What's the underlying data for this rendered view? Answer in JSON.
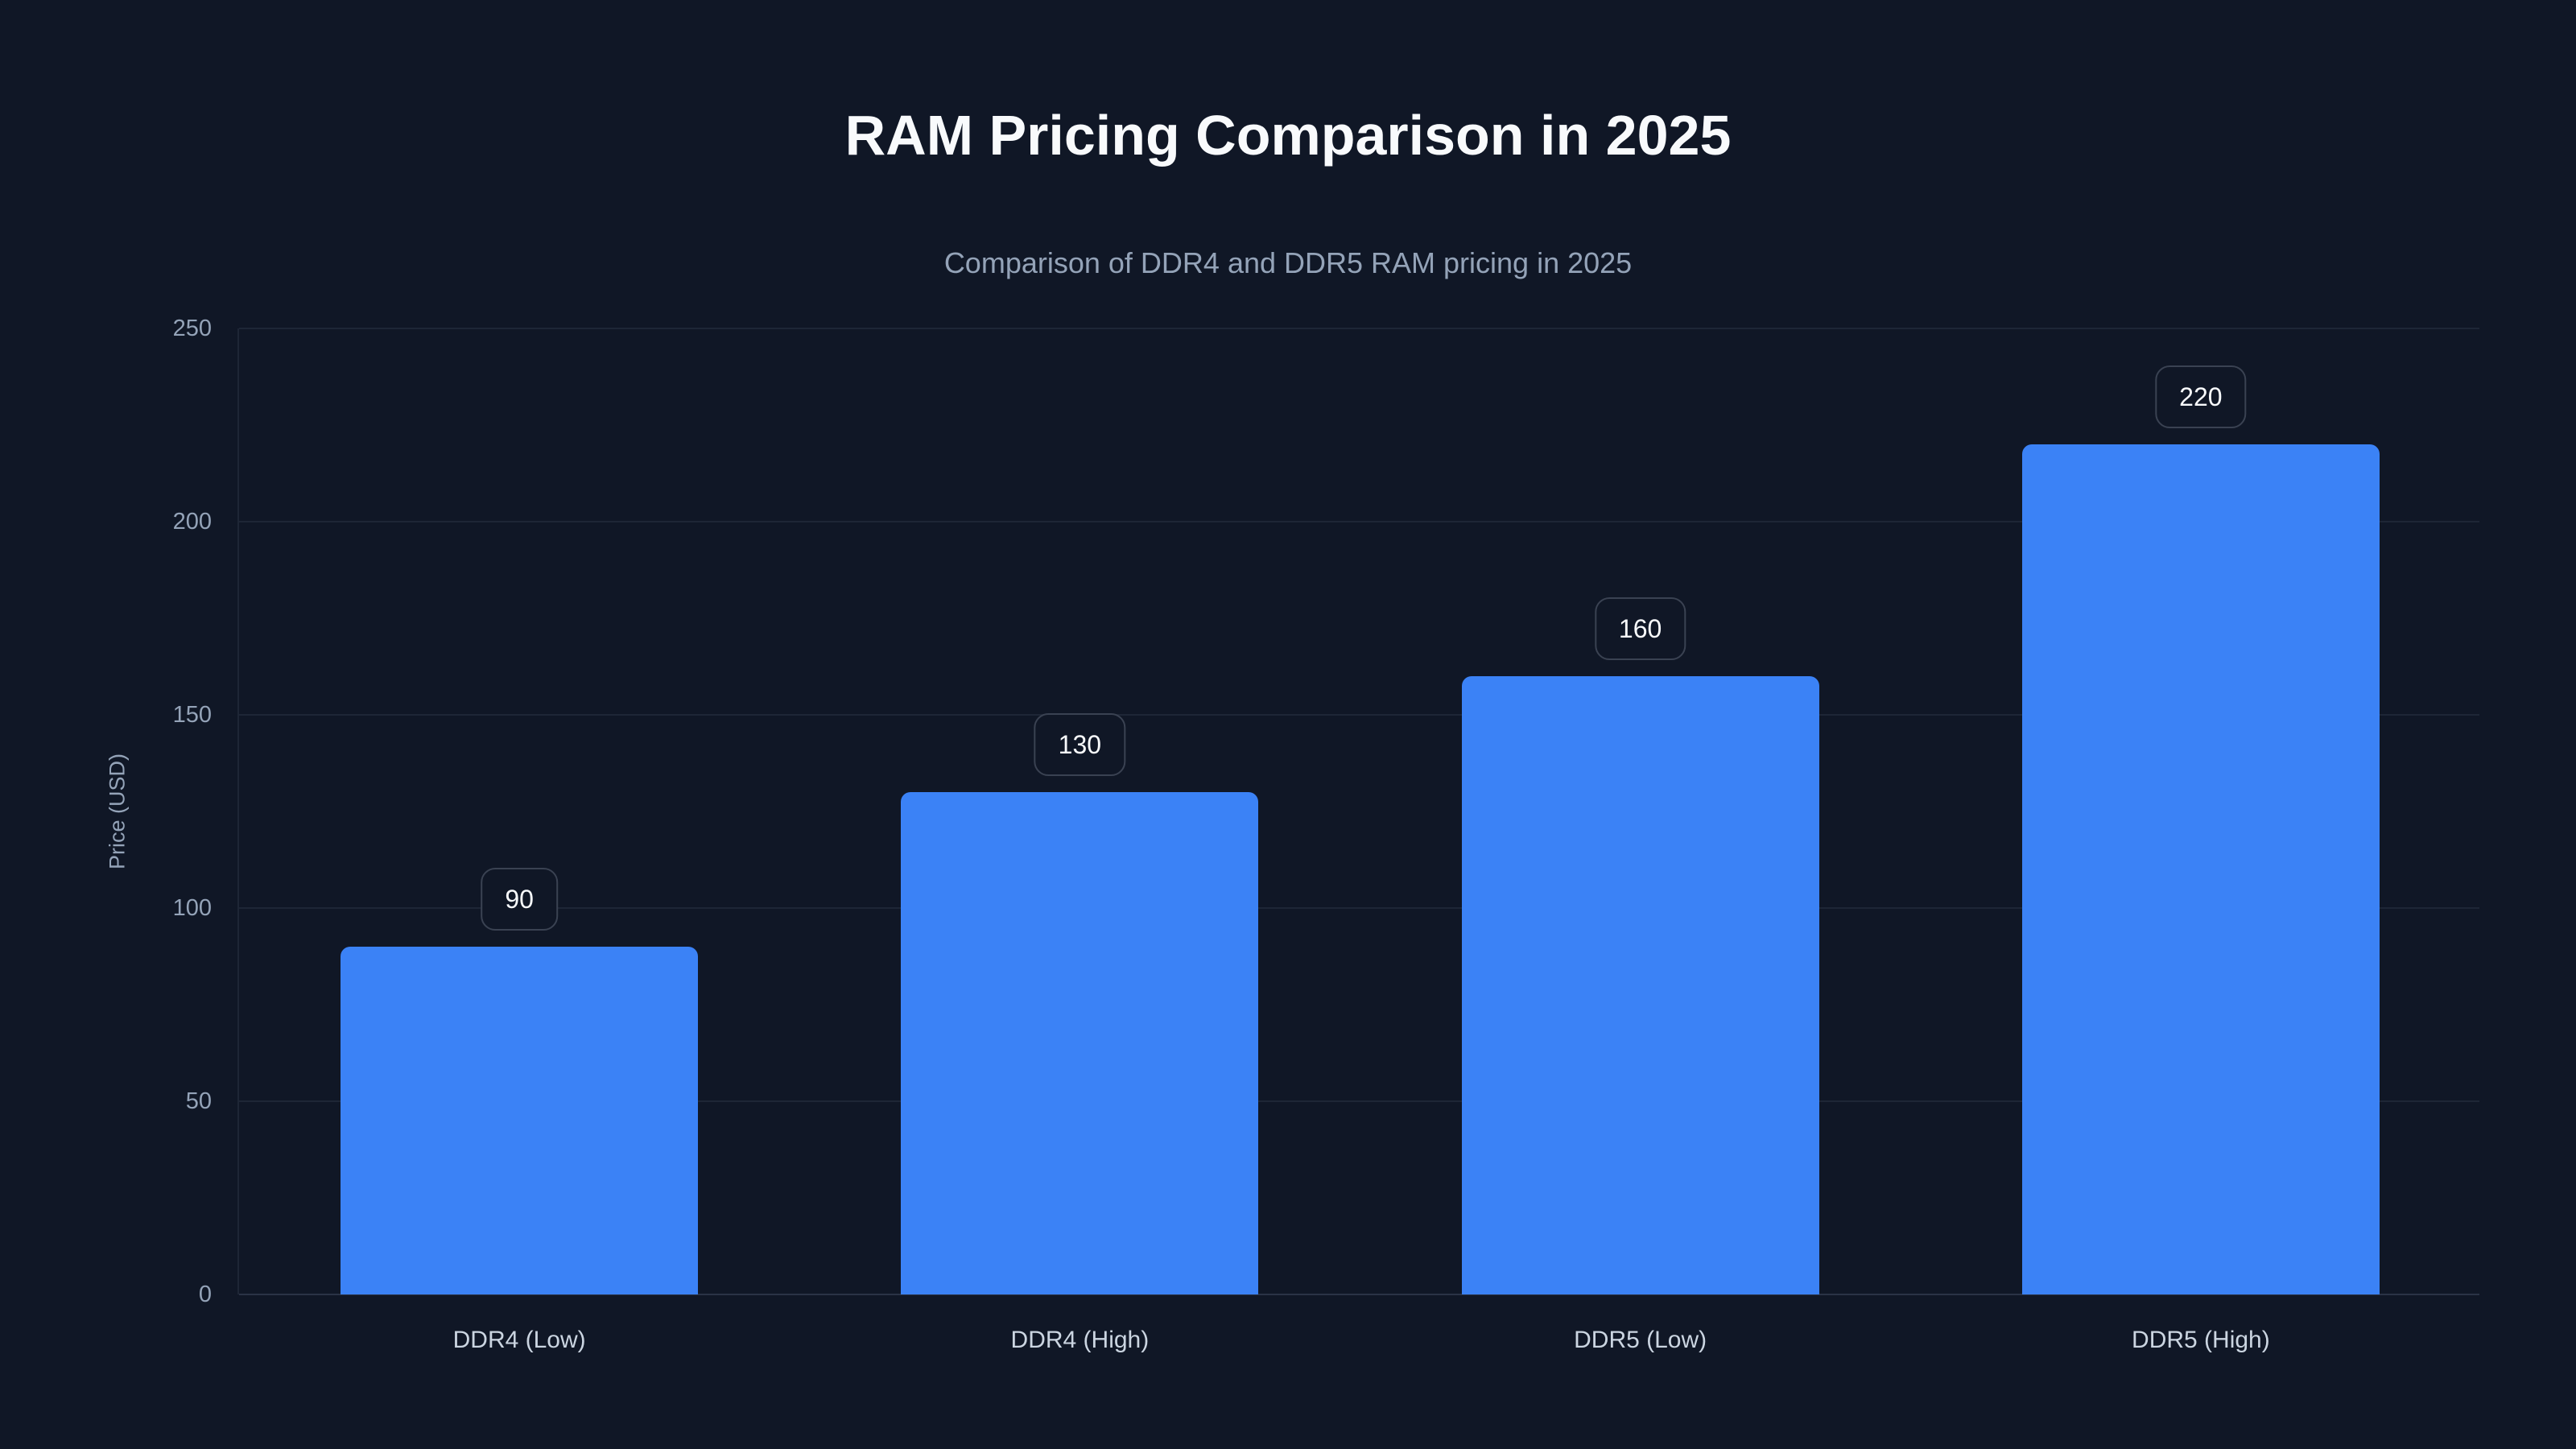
{
  "chart_data": {
    "type": "bar",
    "title": "RAM Pricing Comparison in 2025",
    "subtitle": "Comparison of DDR4 and DDR5 RAM pricing in 2025",
    "ylabel": "Price (USD)",
    "xlabel": "",
    "categories": [
      "DDR4 (Low)",
      "DDR4 (High)",
      "DDR5 (Low)",
      "DDR5 (High)"
    ],
    "values": [
      90,
      130,
      160,
      220
    ],
    "data_labels": [
      "90",
      "130",
      "160",
      "220"
    ],
    "ylim": [
      0,
      250
    ],
    "yticks": [
      0,
      50,
      100,
      150,
      200,
      250
    ],
    "grid": true,
    "legend": false,
    "colors": {
      "background": "#101726",
      "bar": "#3B82F6",
      "title_text": "#F8FAFC",
      "subtitle_text": "#94A3B8",
      "tick_text": "#94A3B8",
      "category_text": "#CBD5E1",
      "gridline": "#1E2636",
      "axis_line": "#2A3346",
      "badge_border": "#3A4252",
      "badge_text": "#F8FAFC"
    }
  }
}
